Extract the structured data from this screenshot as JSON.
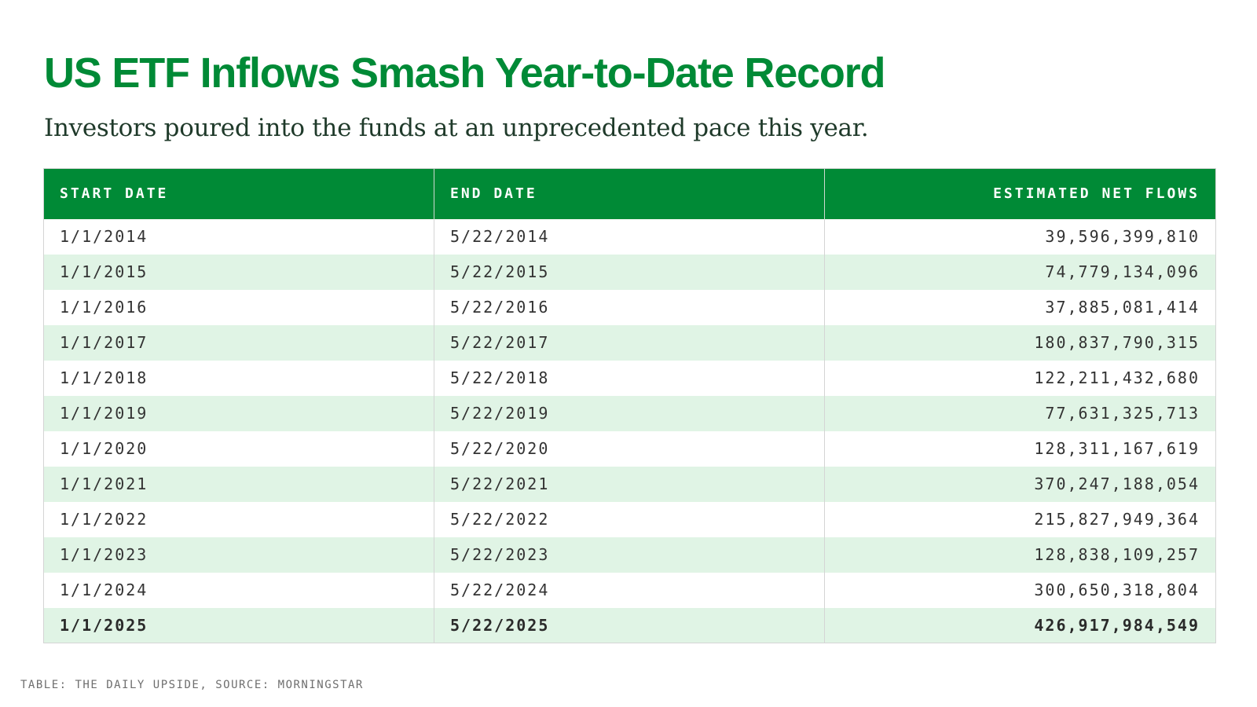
{
  "title": "US ETF Inflows Smash Year-to-Date Record",
  "subtitle": "Investors poured into the funds at an unprecedented pace this year.",
  "colors": {
    "accent": "#008a36",
    "row_stripe": "#e0f4e5",
    "text": "#333333"
  },
  "chart_data": {
    "type": "table",
    "columns": [
      "START DATE",
      "END DATE",
      "ESTIMATED NET FLOWS"
    ],
    "rows": [
      [
        "1/1/2014",
        "5/22/2014",
        "39,596,399,810"
      ],
      [
        "1/1/2015",
        "5/22/2015",
        "74,779,134,096"
      ],
      [
        "1/1/2016",
        "5/22/2016",
        "37,885,081,414"
      ],
      [
        "1/1/2017",
        "5/22/2017",
        "180,837,790,315"
      ],
      [
        "1/1/2018",
        "5/22/2018",
        "122,211,432,680"
      ],
      [
        "1/1/2019",
        "5/22/2019",
        "77,631,325,713"
      ],
      [
        "1/1/2020",
        "5/22/2020",
        "128,311,167,619"
      ],
      [
        "1/1/2021",
        "5/22/2021",
        "370,247,188,054"
      ],
      [
        "1/1/2022",
        "5/22/2022",
        "215,827,949,364"
      ],
      [
        "1/1/2023",
        "5/22/2023",
        "128,838,109,257"
      ],
      [
        "1/1/2024",
        "5/22/2024",
        "300,650,318,804"
      ],
      [
        "1/1/2025",
        "5/22/2025",
        "426,917,984,549"
      ]
    ],
    "highlighted_row": 11
  },
  "footer": "TABLE: THE DAILY UPSIDE, SOURCE: MORNINGSTAR"
}
